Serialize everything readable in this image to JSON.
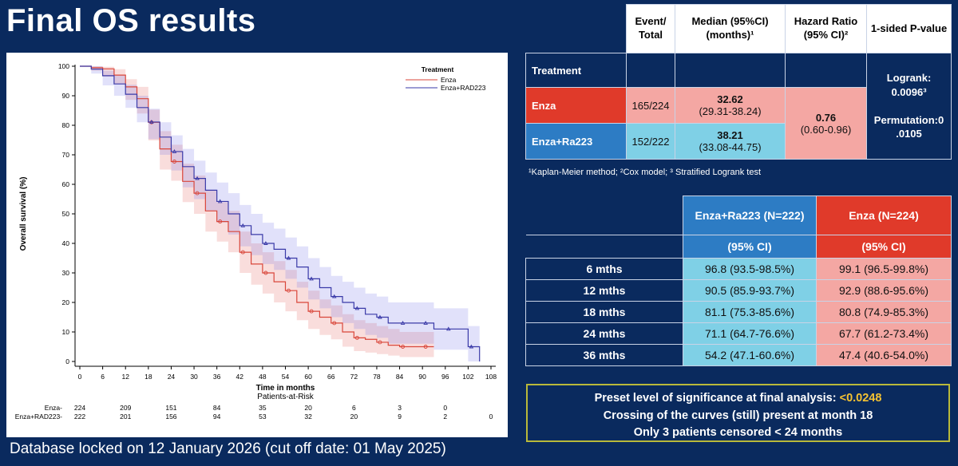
{
  "slide_title": "Final OS results",
  "footer_note": "Database locked on 12 January 2026 (cut off date: 01 May 2025)",
  "colors": {
    "background": "#0a2a5e",
    "enza": "#d9463a",
    "enza_ra223": "#3a3aa8",
    "highlight": "#f5c232"
  },
  "chart_data": {
    "type": "line",
    "legend_title": "Treatment",
    "legend_position": "top-right",
    "xlabel": "Time in months",
    "ylabel": "Overall survival (%)",
    "xlim": [
      0,
      108
    ],
    "ylim": [
      0,
      100
    ],
    "x_ticks": [
      0,
      6,
      12,
      18,
      24,
      30,
      36,
      42,
      48,
      54,
      60,
      66,
      72,
      78,
      84,
      90,
      96,
      102,
      108
    ],
    "y_ticks": [
      0,
      10,
      20,
      30,
      40,
      50,
      60,
      70,
      80,
      90,
      100
    ],
    "series": [
      {
        "name": "Enza",
        "color": "#d9463a",
        "x": [
          0,
          3,
          6,
          9,
          12,
          15,
          18,
          21,
          24,
          27,
          30,
          33,
          36,
          39,
          42,
          45,
          48,
          51,
          54,
          57,
          60,
          63,
          66,
          69,
          72,
          75,
          78,
          81,
          84,
          87,
          90,
          93
        ],
        "y": [
          100,
          99.5,
          99.1,
          97,
          93,
          89,
          81,
          72,
          67.7,
          61,
          57,
          51,
          47.4,
          44,
          37,
          33,
          30,
          27,
          24,
          20,
          17,
          15,
          13,
          10,
          8,
          7.5,
          6.5,
          5.5,
          5,
          5,
          5,
          5
        ],
        "ci_low": [
          100,
          98.5,
          96.5,
          94,
          88.6,
          84,
          74.9,
          65,
          61.2,
          54,
          50,
          44,
          40.6,
          37,
          30,
          26,
          23,
          20,
          17,
          14,
          11,
          9,
          7.5,
          5,
          3.5,
          3,
          2.5,
          2,
          1.5,
          1.5,
          1.5,
          1.5
        ],
        "ci_high": [
          100,
          100,
          99.8,
          99,
          95.6,
          93,
          85.3,
          78,
          73.4,
          67,
          63,
          58,
          54,
          51,
          44,
          40,
          37,
          34,
          31,
          27,
          24,
          21,
          19,
          16,
          14,
          13,
          12,
          11,
          10,
          10,
          10,
          10
        ]
      },
      {
        "name": "Enza+RAD223",
        "color": "#3a3aa8",
        "x": [
          0,
          3,
          6,
          9,
          12,
          15,
          18,
          21,
          24,
          27,
          30,
          33,
          36,
          39,
          42,
          45,
          48,
          51,
          54,
          57,
          60,
          63,
          66,
          69,
          72,
          75,
          78,
          81,
          84,
          87,
          90,
          93,
          96,
          99,
          102,
          105
        ],
        "y": [
          100,
          99,
          96.8,
          94,
          90.5,
          86,
          81.1,
          76,
          71.1,
          66,
          62,
          58,
          54.2,
          50,
          46,
          43,
          40,
          38,
          35,
          32,
          28,
          25,
          22,
          20,
          18,
          16,
          15,
          13,
          13,
          13,
          13,
          11,
          11,
          11,
          5,
          0
        ],
        "ci_low": [
          100,
          97.5,
          93.5,
          90,
          85.9,
          81,
          75.3,
          70,
          64.7,
          59,
          55,
          51,
          47.1,
          43,
          39,
          36,
          33,
          31,
          28,
          25,
          21,
          18,
          15,
          13,
          11,
          9,
          8,
          6,
          6,
          6,
          6,
          4,
          4,
          4,
          0,
          0
        ],
        "ci_high": [
          100,
          100,
          98.5,
          97,
          93.7,
          90,
          85.6,
          81,
          76.6,
          72,
          68,
          64,
          60.6,
          57,
          53,
          50,
          47,
          45,
          42,
          39,
          35,
          32,
          29,
          27,
          25,
          23,
          22,
          20,
          20,
          20,
          20,
          18,
          18,
          18,
          12,
          0
        ]
      }
    ],
    "risk_table": {
      "title": "Patients-at-Risk",
      "rows": [
        {
          "label": "Enza-",
          "values": [
            "224",
            "",
            "209",
            "",
            "151",
            "",
            "84",
            "",
            "35",
            "",
            "20",
            "",
            "6",
            "",
            "3",
            "",
            "0",
            "",
            ""
          ]
        },
        {
          "label": "Enza+RAD223-",
          "values": [
            "222",
            "",
            "201",
            "",
            "156",
            "",
            "94",
            "",
            "53",
            "",
            "32",
            "",
            "20",
            "",
            "9",
            "",
            "2",
            "",
            "0"
          ]
        }
      ]
    }
  },
  "results_table": {
    "headers": {
      "event_total": "Event/ Total",
      "median": "Median (95%CI) (months)¹",
      "hazard_ratio": "Hazard Ratio (95% CI)²",
      "pvalue": "1-sided P-value"
    },
    "treatment_label": "Treatment",
    "rows": [
      {
        "name": "Enza",
        "events": "165/224",
        "median": "32.62",
        "median_ci": "(29.31-38.24)"
      },
      {
        "name": "Enza+Ra223",
        "events": "152/222",
        "median": "38.21",
        "median_ci": "(33.08-44.75)"
      }
    ],
    "hazard_ratio": "0.76",
    "hazard_ratio_ci": "(0.60-0.96)",
    "logrank": "Logrank: 0.0096³",
    "permutation": "Permutation:0 .0105"
  },
  "footnote": "¹Kaplan-Meier method; ²Cox model; ³ Stratified Logrank test",
  "survival_table": {
    "col_combo": "Enza+Ra223 (N=222)",
    "col_enza": "Enza (N=224)",
    "ci_label": "(95%  CI)",
    "rows": [
      {
        "label": "6 mths",
        "combo": "96.8 (93.5-98.5%)",
        "enza": "99.1 (96.5-99.8%)"
      },
      {
        "label": "12 mths",
        "combo": "90.5 (85.9-93.7%)",
        "enza": "92.9 (88.6-95.6%)"
      },
      {
        "label": "18 mths",
        "combo": "81.1 (75.3-85.6%)",
        "enza": "80.8 (74.9-85.3%)"
      },
      {
        "label": "24 mths",
        "combo": "71.1 (64.7-76.6%)",
        "enza": "67.7 (61.2-73.4%)"
      },
      {
        "label": "36 mths",
        "combo": "54.2 (47.1-60.6%)",
        "enza": "47.4 (40.6-54.0%)"
      }
    ]
  },
  "note_box": {
    "line1_prefix": "Preset level of significance at final analysis: ",
    "line1_value": "<0.0248",
    "line2": "Crossing of the curves (still) present at month 18",
    "line3": "Only 3 patients censored < 24 months"
  }
}
